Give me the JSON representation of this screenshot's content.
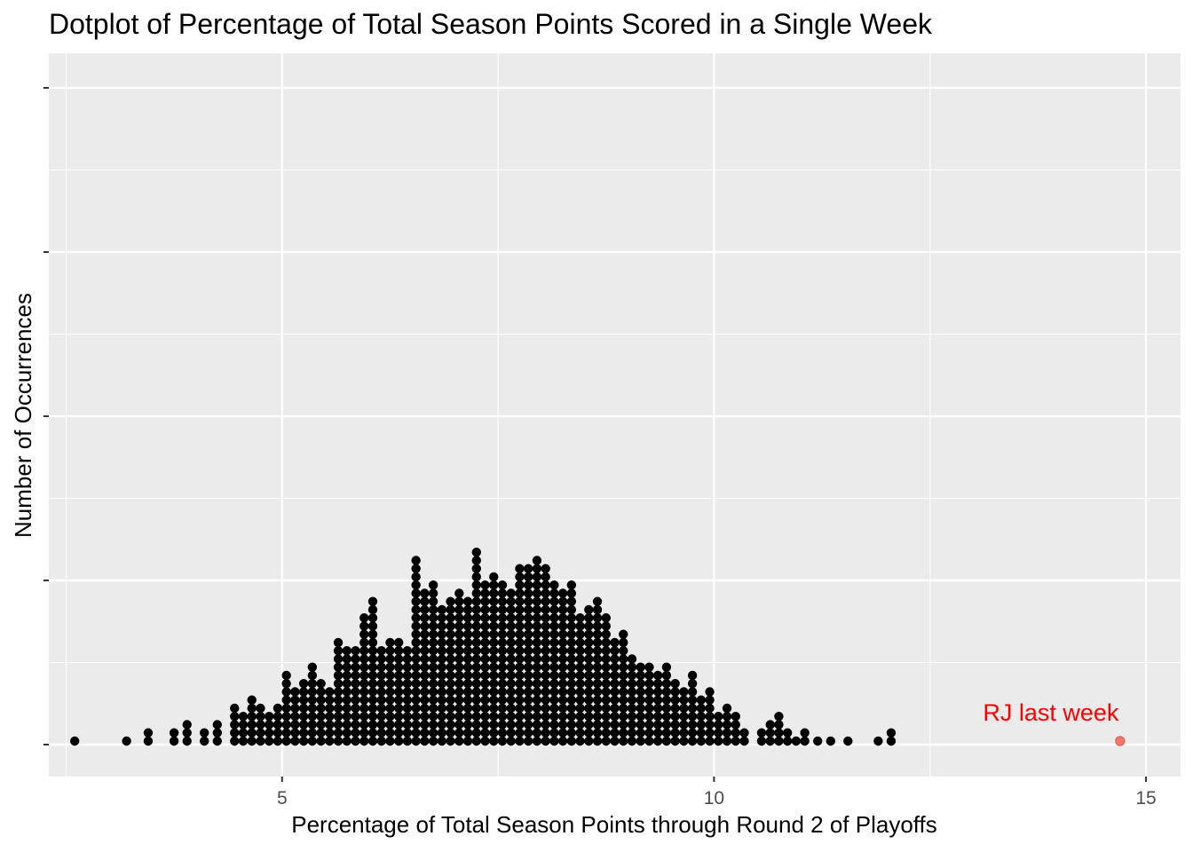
{
  "chart_data": {
    "type": "dotplot",
    "title": "Dotplot of Percentage of Total Season Points Scored in a Single Week",
    "xlabel": "Percentage of Total Season Points through Round 2 of Playoffs",
    "ylabel": "Number of Occurrences",
    "xlim": [
      2.3,
      15.4
    ],
    "x_ticks": [
      5,
      10,
      15
    ],
    "y_tick_labels": "none",
    "grid": true,
    "legend": "none",
    "bins": [
      {
        "x": 2.6,
        "count": 1
      },
      {
        "x": 3.2,
        "count": 1
      },
      {
        "x": 3.45,
        "count": 2
      },
      {
        "x": 3.75,
        "count": 2
      },
      {
        "x": 3.9,
        "count": 3
      },
      {
        "x": 4.1,
        "count": 2
      },
      {
        "x": 4.25,
        "count": 3
      },
      {
        "x": 4.45,
        "count": 5
      },
      {
        "x": 4.55,
        "count": 4
      },
      {
        "x": 4.65,
        "count": 6
      },
      {
        "x": 4.75,
        "count": 5
      },
      {
        "x": 4.85,
        "count": 4
      },
      {
        "x": 4.95,
        "count": 5
      },
      {
        "x": 5.05,
        "count": 9
      },
      {
        "x": 5.15,
        "count": 7
      },
      {
        "x": 5.25,
        "count": 8
      },
      {
        "x": 5.35,
        "count": 10
      },
      {
        "x": 5.45,
        "count": 8
      },
      {
        "x": 5.55,
        "count": 7
      },
      {
        "x": 5.65,
        "count": 13
      },
      {
        "x": 5.75,
        "count": 12
      },
      {
        "x": 5.85,
        "count": 12
      },
      {
        "x": 5.95,
        "count": 16
      },
      {
        "x": 6.05,
        "count": 18
      },
      {
        "x": 6.15,
        "count": 12
      },
      {
        "x": 6.25,
        "count": 13
      },
      {
        "x": 6.35,
        "count": 13
      },
      {
        "x": 6.45,
        "count": 12
      },
      {
        "x": 6.55,
        "count": 23
      },
      {
        "x": 6.65,
        "count": 19
      },
      {
        "x": 6.75,
        "count": 20
      },
      {
        "x": 6.85,
        "count": 17
      },
      {
        "x": 6.95,
        "count": 18
      },
      {
        "x": 7.05,
        "count": 19
      },
      {
        "x": 7.15,
        "count": 18
      },
      {
        "x": 7.25,
        "count": 24
      },
      {
        "x": 7.35,
        "count": 20
      },
      {
        "x": 7.45,
        "count": 21
      },
      {
        "x": 7.55,
        "count": 20
      },
      {
        "x": 7.65,
        "count": 19
      },
      {
        "x": 7.75,
        "count": 22
      },
      {
        "x": 7.85,
        "count": 22
      },
      {
        "x": 7.95,
        "count": 23
      },
      {
        "x": 8.05,
        "count": 22
      },
      {
        "x": 8.15,
        "count": 20
      },
      {
        "x": 8.25,
        "count": 19
      },
      {
        "x": 8.35,
        "count": 20
      },
      {
        "x": 8.45,
        "count": 16
      },
      {
        "x": 8.55,
        "count": 17
      },
      {
        "x": 8.65,
        "count": 18
      },
      {
        "x": 8.75,
        "count": 16
      },
      {
        "x": 8.85,
        "count": 13
      },
      {
        "x": 8.95,
        "count": 14
      },
      {
        "x": 9.05,
        "count": 11
      },
      {
        "x": 9.15,
        "count": 10
      },
      {
        "x": 9.25,
        "count": 10
      },
      {
        "x": 9.35,
        "count": 9
      },
      {
        "x": 9.45,
        "count": 10
      },
      {
        "x": 9.55,
        "count": 8
      },
      {
        "x": 9.65,
        "count": 7
      },
      {
        "x": 9.75,
        "count": 9
      },
      {
        "x": 9.85,
        "count": 6
      },
      {
        "x": 9.95,
        "count": 7
      },
      {
        "x": 10.05,
        "count": 4
      },
      {
        "x": 10.15,
        "count": 5
      },
      {
        "x": 10.25,
        "count": 4
      },
      {
        "x": 10.35,
        "count": 2
      },
      {
        "x": 10.55,
        "count": 2
      },
      {
        "x": 10.65,
        "count": 3
      },
      {
        "x": 10.75,
        "count": 4
      },
      {
        "x": 10.85,
        "count": 2
      },
      {
        "x": 10.95,
        "count": 1
      },
      {
        "x": 11.05,
        "count": 2
      },
      {
        "x": 11.2,
        "count": 1
      },
      {
        "x": 11.35,
        "count": 1
      },
      {
        "x": 11.55,
        "count": 1
      },
      {
        "x": 11.9,
        "count": 1
      },
      {
        "x": 12.05,
        "count": 2
      }
    ],
    "highlight": {
      "label": "RJ last week",
      "x": 14.7,
      "count": 1,
      "color": "#f8766d",
      "label_color": "#ff0000"
    },
    "colors": {
      "dot": "#000000",
      "panel": "#ebebeb",
      "grid": "#ffffff",
      "tick": "#4d4d4d"
    }
  }
}
